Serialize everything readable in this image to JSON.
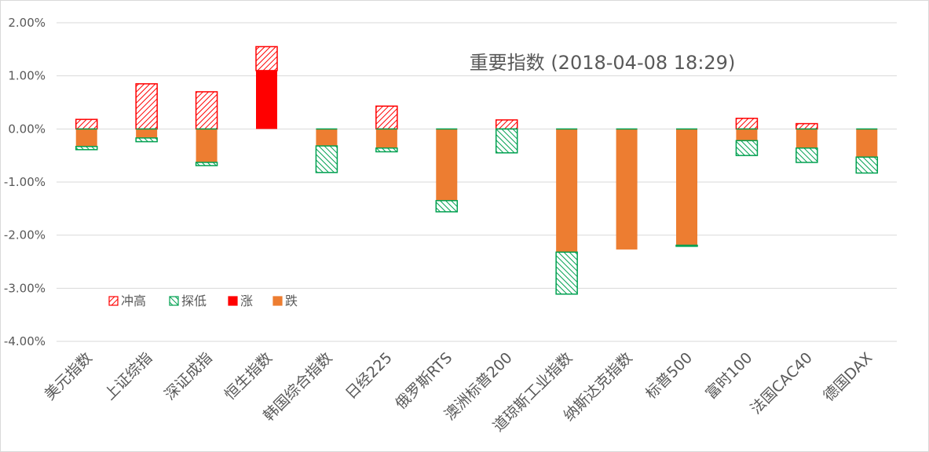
{
  "chart_data": {
    "type": "bar",
    "title": "重要指数 (2018-04-08 18:29)",
    "ylim": [
      -4,
      2
    ],
    "y_ticks": [
      "2.00%",
      "1.00%",
      "0.00%",
      "-1.00%",
      "-2.00%",
      "-3.00%",
      "-4.00%"
    ],
    "grid": true,
    "legend_position": "lower-left",
    "colors": {
      "high": "#ff0000",
      "low": "#00a050",
      "rise": "#ff0000",
      "fall": "#ed7d31"
    },
    "categories": [
      "美元指数",
      "上证综指",
      "深证成指",
      "恒生指数",
      "韩国综合指数",
      "日经225",
      "俄罗斯RTS",
      "澳洲标普200",
      "道琼斯工业指数",
      "纳斯达克指数",
      "标普500",
      "富时100",
      "法国CAC40",
      "德国DAX"
    ],
    "series": [
      {
        "name": "冲高",
        "values": [
          0.18,
          0.85,
          0.7,
          0.45,
          0.0,
          0.43,
          0.0,
          0.17,
          0.0,
          0.0,
          0.0,
          0.2,
          0.1,
          0.0
        ]
      },
      {
        "name": "探低",
        "values": [
          -0.06,
          -0.07,
          -0.06,
          0.0,
          -0.5,
          -0.07,
          -0.21,
          -0.45,
          -0.79,
          0.0,
          -0.02,
          -0.28,
          -0.27,
          -0.3
        ]
      },
      {
        "name": "涨",
        "values": [
          0,
          0,
          0,
          1.1,
          0,
          0,
          0,
          0,
          0,
          0,
          0,
          0,
          0,
          0
        ]
      },
      {
        "name": "跌",
        "values": [
          -0.33,
          -0.17,
          -0.63,
          0,
          -0.32,
          -0.36,
          -1.35,
          0,
          -2.32,
          -2.27,
          -2.19,
          -0.22,
          -0.36,
          -0.53
        ]
      }
    ]
  }
}
